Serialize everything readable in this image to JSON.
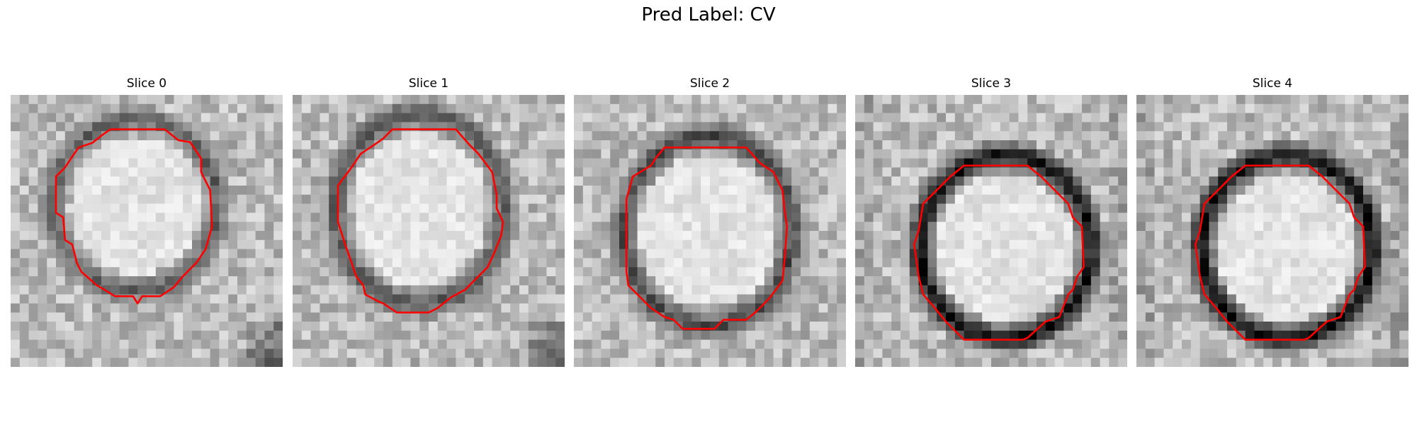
{
  "figure": {
    "title": "Pred Label: CV"
  },
  "colors": {
    "background": "#ffffff",
    "contour": "#ff0000"
  },
  "slices": [
    {
      "title": "Slice 0"
    },
    {
      "title": "Slice 1"
    },
    {
      "title": "Slice 2"
    },
    {
      "title": "Slice 3"
    },
    {
      "title": "Slice 4"
    }
  ]
}
